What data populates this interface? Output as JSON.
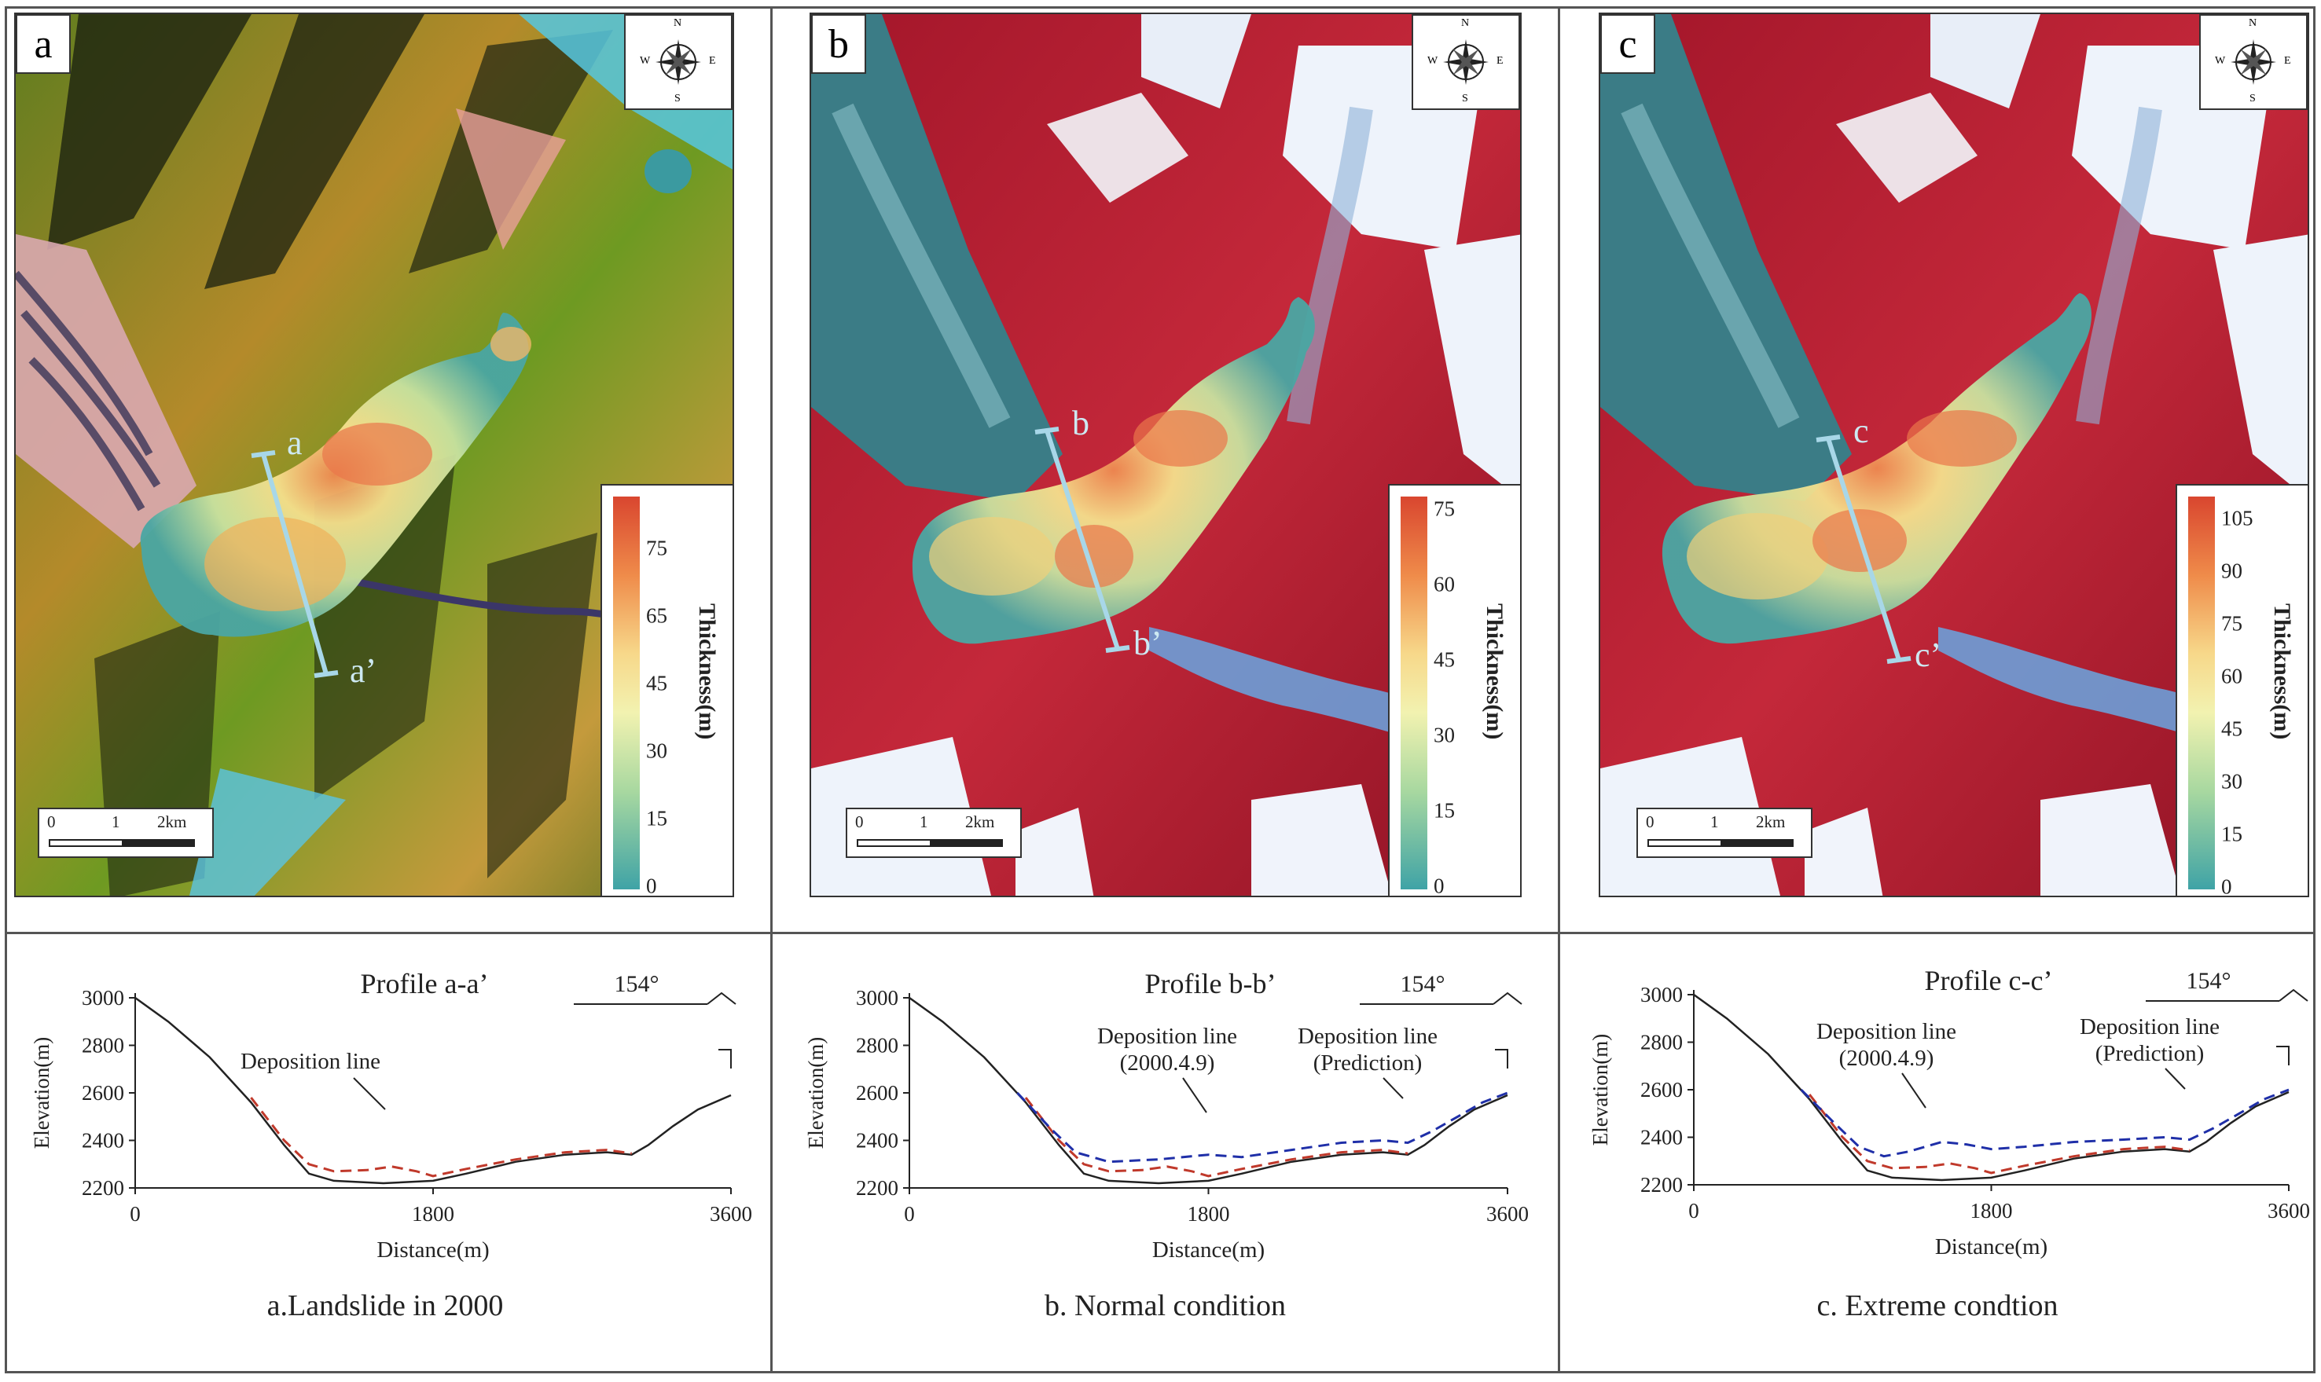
{
  "panels": [
    {
      "letter": "a",
      "section_start": "a",
      "section_end": "a’",
      "legend_title": "Thickness(m)",
      "legend_ticks": [
        "75",
        "65",
        "45",
        "30",
        "15",
        "0"
      ],
      "scale": {
        "t0": "0",
        "t1": "1",
        "t2": "2km"
      },
      "compass": {
        "n": "N",
        "s": "S",
        "e": "E",
        "w": "W"
      },
      "caption": "a.Landslide in 2000"
    },
    {
      "letter": "b",
      "section_start": "b",
      "section_end": "b’",
      "legend_title": "Thickness(m)",
      "legend_ticks": [
        "75",
        "60",
        "45",
        "30",
        "15",
        "0"
      ],
      "scale": {
        "t0": "0",
        "t1": "1",
        "t2": "2km"
      },
      "compass": {
        "n": "N",
        "s": "S",
        "e": "E",
        "w": "W"
      },
      "caption": "b. Normal condition"
    },
    {
      "letter": "c",
      "section_start": "c",
      "section_end": "c’",
      "legend_title": "Thickness(m)",
      "legend_ticks": [
        "105",
        "90",
        "75",
        "60",
        "45",
        "30",
        "15",
        "0"
      ],
      "scale": {
        "t0": "0",
        "t1": "1",
        "t2": "2km"
      },
      "compass": {
        "n": "N",
        "s": "S",
        "e": "E",
        "w": "W"
      },
      "caption": "c. Extreme condtion"
    }
  ],
  "chart_data": [
    {
      "type": "line",
      "title": "Profile a-a’",
      "xlabel": "Distance(m)",
      "ylabel": "Elevation(m)",
      "xlim": [
        0,
        3600
      ],
      "ylim": [
        2200,
        3000
      ],
      "xticks": [
        "0",
        "1800",
        "3600"
      ],
      "yticks": [
        "3000",
        "2800",
        "2600",
        "2400",
        "2200"
      ],
      "direction_label": "154°",
      "annotations": [
        "Deposition line"
      ],
      "colors": {
        "terrain": "#222222",
        "deposition_2000": "#c0392b"
      },
      "series": [
        {
          "key": "terrain",
          "x": [
            0,
            200,
            450,
            700,
            900,
            1050,
            1200,
            1500,
            1800,
            2000,
            2300,
            2600,
            2850,
            3000,
            3100,
            3250,
            3400,
            3600
          ],
          "y": [
            3000,
            2900,
            2750,
            2560,
            2380,
            2260,
            2230,
            2220,
            2230,
            2260,
            2310,
            2340,
            2350,
            2340,
            2380,
            2460,
            2530,
            2590
          ]
        },
        {
          "key": "deposition_2000",
          "dash": true,
          "x": [
            700,
            900,
            1050,
            1200,
            1400,
            1550,
            1700,
            1800,
            2000,
            2300,
            2600,
            2850,
            3000
          ],
          "y": [
            2580,
            2400,
            2300,
            2270,
            2275,
            2290,
            2270,
            2250,
            2280,
            2320,
            2350,
            2360,
            2345
          ]
        }
      ]
    },
    {
      "type": "line",
      "title": "Profile b-b’",
      "xlabel": "Distance(m)",
      "ylabel": "Elevation(m)",
      "xlim": [
        0,
        3600
      ],
      "ylim": [
        2200,
        3000
      ],
      "xticks": [
        "0",
        "1800",
        "3600"
      ],
      "yticks": [
        "3000",
        "2800",
        "2600",
        "2400",
        "2200"
      ],
      "direction_label": "154°",
      "annotations": [
        "Deposition line",
        "(2000.4.9)",
        "Deposition line",
        "(Prediction)"
      ],
      "colors": {
        "terrain": "#222222",
        "deposition_2000": "#c0392b",
        "deposition_prediction": "#1f2fa8"
      },
      "series": [
        {
          "key": "terrain",
          "x": [
            0,
            200,
            450,
            700,
            900,
            1050,
            1200,
            1500,
            1800,
            2000,
            2300,
            2600,
            2850,
            3000,
            3100,
            3250,
            3400,
            3600
          ],
          "y": [
            3000,
            2900,
            2750,
            2560,
            2380,
            2260,
            2230,
            2220,
            2230,
            2260,
            2310,
            2340,
            2350,
            2340,
            2380,
            2460,
            2530,
            2590
          ]
        },
        {
          "key": "deposition_2000",
          "dash": true,
          "x": [
            700,
            900,
            1050,
            1200,
            1400,
            1550,
            1700,
            1800,
            2000,
            2300,
            2600,
            2850,
            3000
          ],
          "y": [
            2580,
            2400,
            2300,
            2270,
            2275,
            2290,
            2270,
            2250,
            2280,
            2320,
            2350,
            2360,
            2345
          ]
        },
        {
          "key": "deposition_prediction",
          "dash": true,
          "x": [
            650,
            850,
            1000,
            1200,
            1500,
            1800,
            2000,
            2300,
            2600,
            2850,
            3000,
            3150,
            3300,
            3450,
            3600
          ],
          "y": [
            2600,
            2450,
            2350,
            2310,
            2320,
            2340,
            2330,
            2360,
            2390,
            2400,
            2390,
            2440,
            2500,
            2560,
            2600
          ]
        }
      ]
    },
    {
      "type": "line",
      "title": "Profile c-c’",
      "xlabel": "Distance(m)",
      "ylabel": "Elevation(m)",
      "xlim": [
        0,
        3600
      ],
      "ylim": [
        2200,
        3000
      ],
      "xticks": [
        "0",
        "1800",
        "3600"
      ],
      "yticks": [
        "3000",
        "2800",
        "2600",
        "2400",
        "2200"
      ],
      "direction_label": "154°",
      "annotations": [
        "Deposition line",
        "(2000.4.9)",
        "Deposition line",
        "(Prediction)"
      ],
      "colors": {
        "terrain": "#222222",
        "deposition_2000": "#c0392b",
        "deposition_prediction": "#1f2fa8"
      },
      "series": [
        {
          "key": "terrain",
          "x": [
            0,
            200,
            450,
            700,
            900,
            1050,
            1200,
            1500,
            1800,
            2000,
            2300,
            2600,
            2850,
            3000,
            3100,
            3250,
            3400,
            3600
          ],
          "y": [
            3000,
            2900,
            2750,
            2560,
            2380,
            2260,
            2230,
            2220,
            2230,
            2260,
            2310,
            2340,
            2350,
            2340,
            2380,
            2460,
            2530,
            2590
          ]
        },
        {
          "key": "deposition_2000",
          "dash": true,
          "x": [
            700,
            900,
            1050,
            1200,
            1400,
            1550,
            1700,
            1800,
            2000,
            2300,
            2600,
            2850,
            3000
          ],
          "y": [
            2580,
            2400,
            2300,
            2270,
            2275,
            2290,
            2270,
            2250,
            2280,
            2320,
            2350,
            2360,
            2345
          ]
        },
        {
          "key": "deposition_prediction",
          "dash": true,
          "x": [
            650,
            850,
            1000,
            1150,
            1300,
            1500,
            1650,
            1800,
            2000,
            2300,
            2600,
            2850,
            3000,
            3150,
            3300,
            3450,
            3600
          ],
          "y": [
            2600,
            2460,
            2360,
            2320,
            2340,
            2380,
            2370,
            2350,
            2360,
            2380,
            2390,
            2400,
            2390,
            2440,
            2500,
            2560,
            2600
          ]
        }
      ]
    }
  ]
}
